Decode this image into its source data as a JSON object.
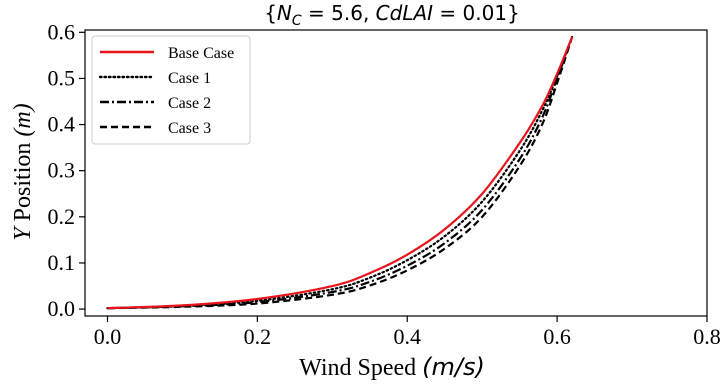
{
  "chart_data": {
    "type": "line",
    "title": "{N_C = 5.6, CdLAI = 0.01}",
    "title_parts": {
      "open": "{",
      "var_main": "N",
      "var_sub": "C",
      "eq1": " = 5.6, ",
      "var2": "CdLAI",
      "eq2": " = 0.01}"
    },
    "xlabel": "Wind Speed (m/s)",
    "xlabel_parts": {
      "text": "Wind Speed ",
      "unit": "(m/s)"
    },
    "ylabel": "Y Position (m)",
    "ylabel_parts": {
      "var": "Y",
      "text": " Position ",
      "unit": "(m)"
    },
    "xlim": [
      -0.03,
      0.8
    ],
    "ylim": [
      -0.015,
      0.605
    ],
    "xticks": [
      0.0,
      0.2,
      0.4,
      0.6,
      0.8
    ],
    "xtick_labels": [
      "0.0",
      "0.2",
      "0.4",
      "0.6",
      "0.8"
    ],
    "yticks": [
      0.0,
      0.1,
      0.2,
      0.3,
      0.4,
      0.5,
      0.6
    ],
    "ytick_labels": [
      "0.0",
      "0.1",
      "0.2",
      "0.3",
      "0.4",
      "0.5",
      "0.6"
    ],
    "grid": false,
    "legend_position": "top-left",
    "series": [
      {
        "name": "Base Case",
        "color": "#e8141c",
        "style": "solid",
        "x": [
          0.0,
          0.1,
          0.2,
          0.3,
          0.35,
          0.4,
          0.45,
          0.5,
          0.55,
          0.58,
          0.6,
          0.62
        ],
        "y": [
          0.002,
          0.008,
          0.022,
          0.05,
          0.078,
          0.118,
          0.173,
          0.25,
          0.36,
          0.44,
          0.51,
          0.59
        ]
      },
      {
        "name": "Case 1",
        "color": "#000000",
        "style": "dotted",
        "x": [
          0.0,
          0.1,
          0.2,
          0.3,
          0.35,
          0.4,
          0.45,
          0.5,
          0.55,
          0.58,
          0.6,
          0.62
        ],
        "y": [
          0.002,
          0.007,
          0.018,
          0.043,
          0.068,
          0.106,
          0.158,
          0.233,
          0.343,
          0.43,
          0.505,
          0.59
        ]
      },
      {
        "name": "Case 2",
        "color": "#000000",
        "style": "dashdot",
        "x": [
          0.0,
          0.1,
          0.2,
          0.3,
          0.35,
          0.4,
          0.45,
          0.5,
          0.55,
          0.58,
          0.6,
          0.62
        ],
        "y": [
          0.002,
          0.006,
          0.015,
          0.037,
          0.059,
          0.094,
          0.143,
          0.215,
          0.325,
          0.415,
          0.5,
          0.59
        ]
      },
      {
        "name": "Case 3",
        "color": "#000000",
        "style": "dashed",
        "x": [
          0.0,
          0.1,
          0.2,
          0.3,
          0.35,
          0.4,
          0.45,
          0.5,
          0.55,
          0.58,
          0.6,
          0.62
        ],
        "y": [
          0.002,
          0.005,
          0.012,
          0.031,
          0.051,
          0.084,
          0.131,
          0.2,
          0.31,
          0.4,
          0.49,
          0.59
        ]
      }
    ]
  }
}
